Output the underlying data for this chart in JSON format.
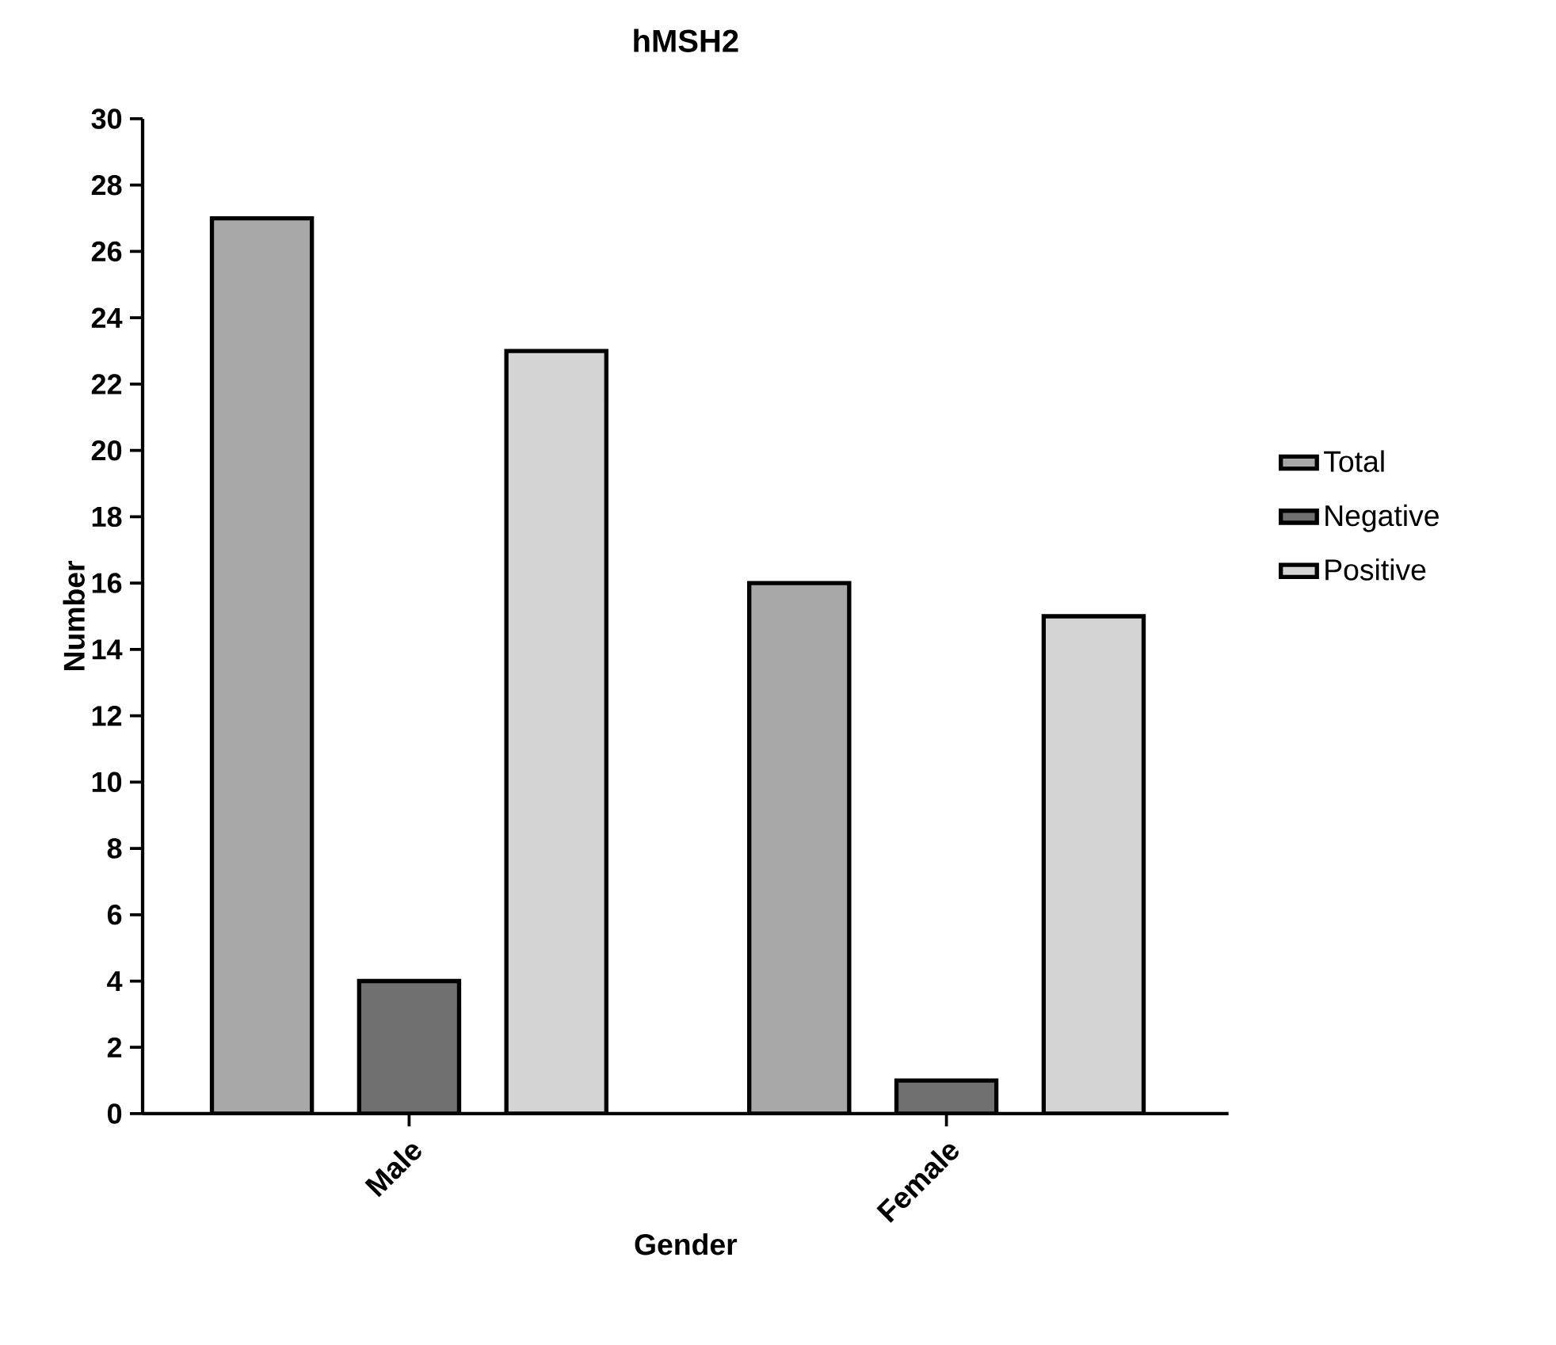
{
  "chart_data": {
    "type": "bar",
    "title": "hMSH2",
    "xlabel": "Gender",
    "ylabel": "Number",
    "categories": [
      "Male",
      "Female"
    ],
    "series": [
      {
        "name": "Total",
        "color": "#a8a8a8",
        "values": [
          27,
          16
        ]
      },
      {
        "name": "Negative",
        "color": "#707070",
        "values": [
          4,
          1
        ]
      },
      {
        "name": "Positive",
        "color": "#d4d4d4",
        "values": [
          23,
          15
        ]
      }
    ],
    "ylim": [
      0,
      30
    ],
    "yticks": [
      0,
      2,
      4,
      6,
      8,
      10,
      12,
      14,
      16,
      18,
      20,
      22,
      24,
      26,
      28,
      30
    ],
    "grid": false,
    "legend": "right"
  }
}
